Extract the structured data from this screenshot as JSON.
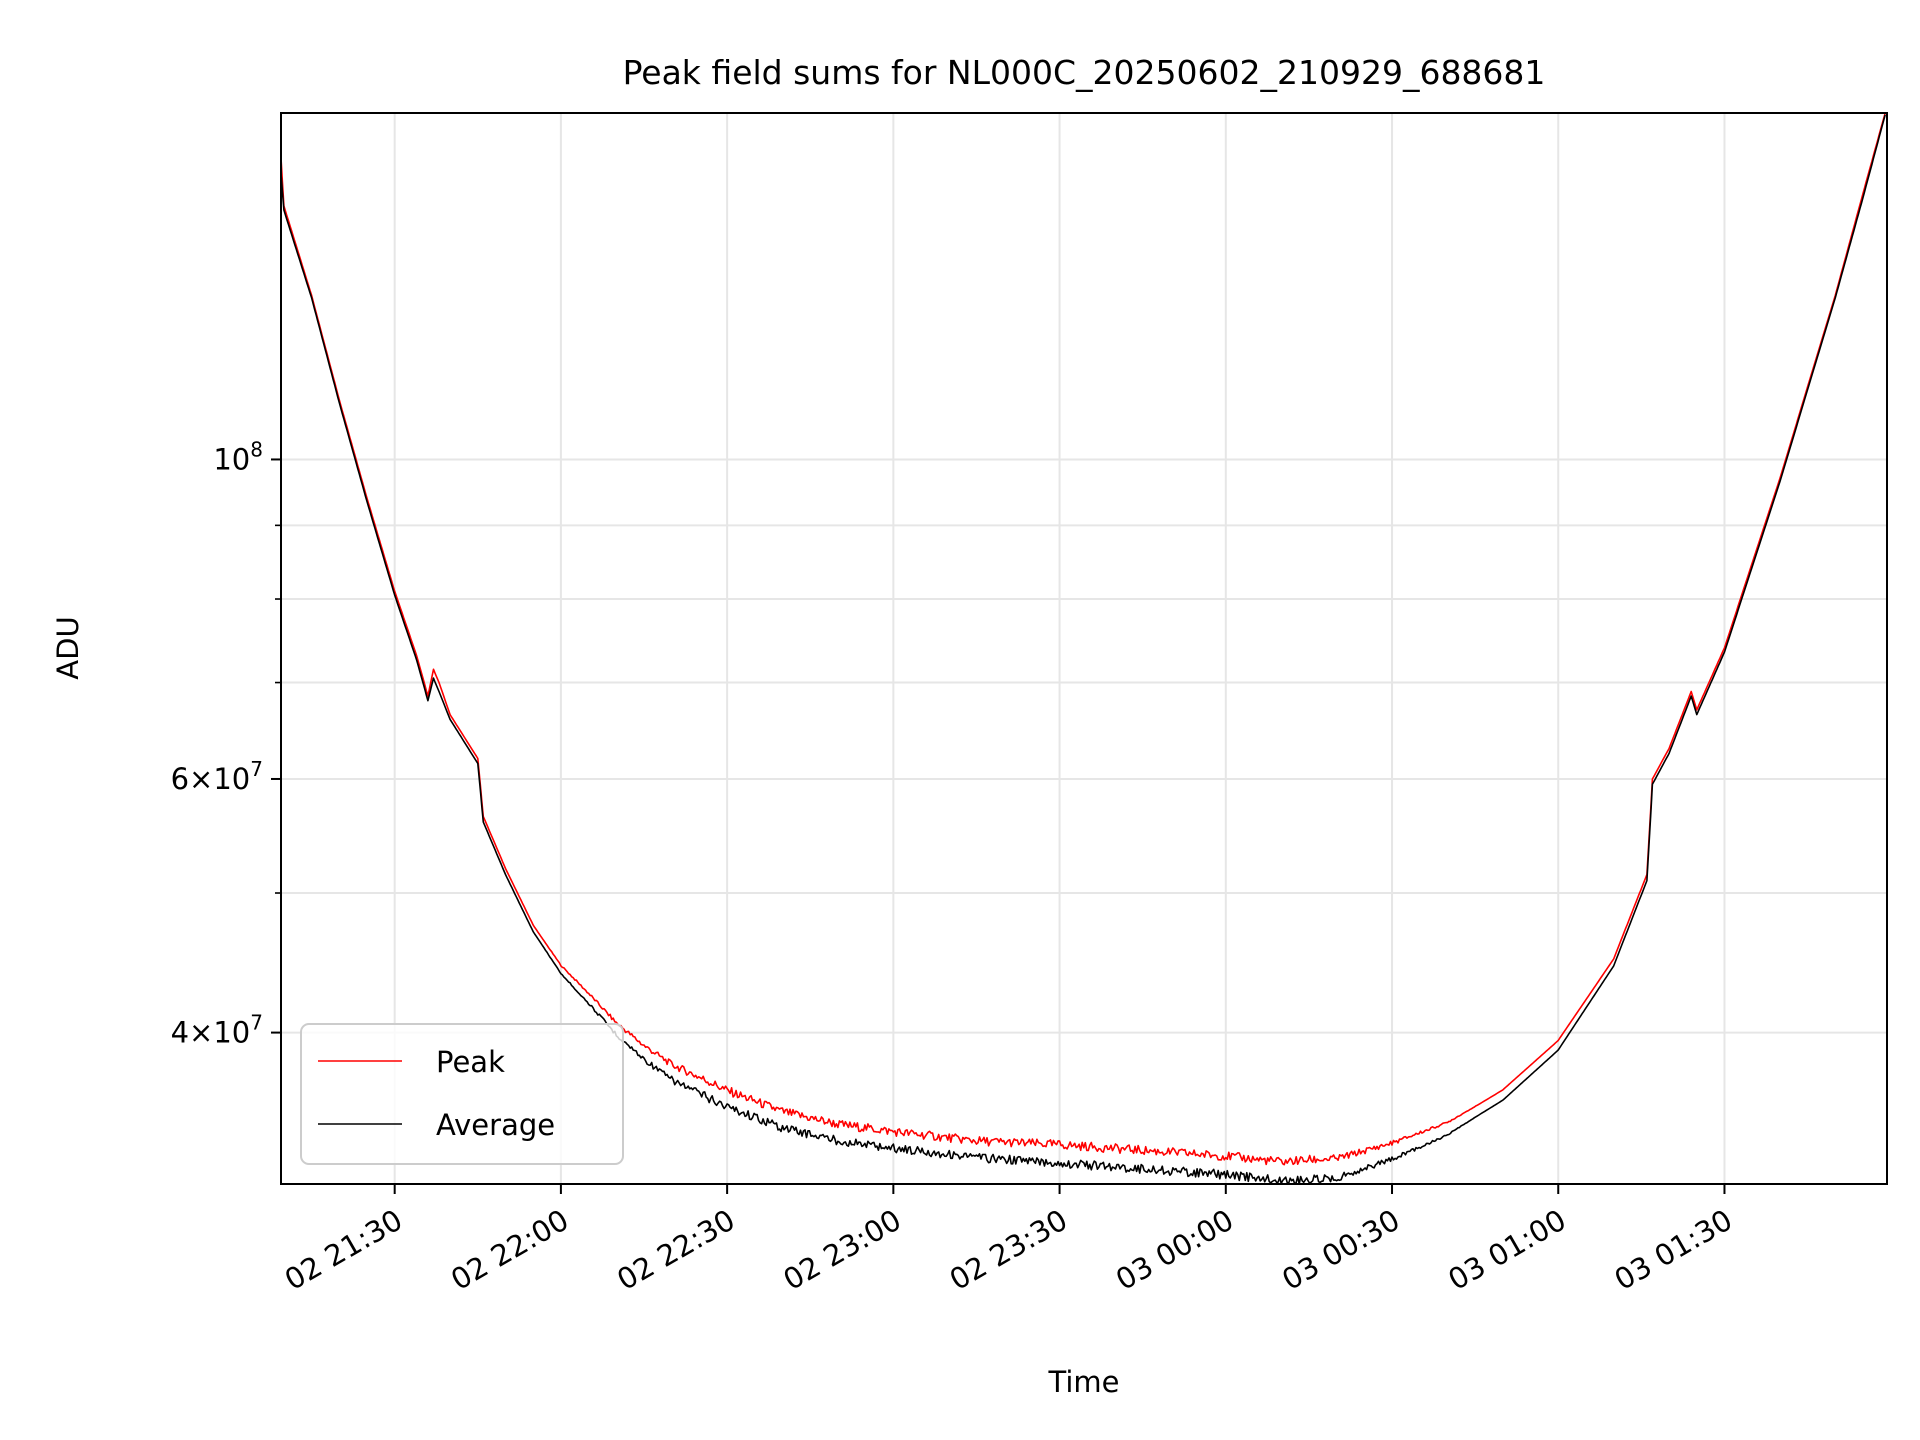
{
  "chart_data": {
    "type": "line",
    "title": "Peak field sums for NL000C_20250602_210929_688681",
    "xlabel": "Time",
    "ylabel": "ADU",
    "y_scale": "log",
    "ylim": [
      31400000,
      174000000
    ],
    "xlim": [
      "2025-06-02 21:09:29",
      "2025-06-03 01:59:20"
    ],
    "grid": true,
    "legend_position": "lower left",
    "x_ticks": [
      {
        "t": "2025-06-02 21:30",
        "label": "02 21:30"
      },
      {
        "t": "2025-06-02 22:00",
        "label": "02 22:00"
      },
      {
        "t": "2025-06-02 22:30",
        "label": "02 22:30"
      },
      {
        "t": "2025-06-02 23:00",
        "label": "02 23:00"
      },
      {
        "t": "2025-06-02 23:30",
        "label": "02 23:30"
      },
      {
        "t": "2025-06-03 00:00",
        "label": "03 00:00"
      },
      {
        "t": "2025-06-03 00:30",
        "label": "03 00:30"
      },
      {
        "t": "2025-06-03 01:00",
        "label": "03 01:00"
      },
      {
        "t": "2025-06-03 01:30",
        "label": "03 01:30"
      }
    ],
    "y_major_ticks": [
      {
        "value": 40000000,
        "mantissa": "4",
        "exp": "7"
      },
      {
        "value": 60000000,
        "mantissa": "6",
        "exp": "7"
      },
      {
        "value": 100000000,
        "mantissa": "",
        "exp": "8"
      }
    ],
    "y_minor_ticks": [
      50000000,
      70000000,
      80000000,
      90000000
    ],
    "series": [
      {
        "name": "Peak",
        "color": "#ff0000",
        "points": [
          [
            "2025-06-02 21:09:29",
            162000000
          ],
          [
            "2025-06-02 21:10",
            150000000
          ],
          [
            "2025-06-02 21:15",
            130000000
          ],
          [
            "2025-06-02 21:20",
            110000000
          ],
          [
            "2025-06-02 21:25",
            94000000
          ],
          [
            "2025-06-02 21:30",
            81000000
          ],
          [
            "2025-06-02 21:34",
            73000000
          ],
          [
            "2025-06-02 21:36",
            68500000
          ],
          [
            "2025-06-02 21:37",
            71500000
          ],
          [
            "2025-06-02 21:38",
            70000000
          ],
          [
            "2025-06-02 21:40",
            66500000
          ],
          [
            "2025-06-02 21:45",
            62000000
          ],
          [
            "2025-06-02 21:46",
            56500000
          ],
          [
            "2025-06-02 21:50",
            52000000
          ],
          [
            "2025-06-02 21:55",
            47500000
          ],
          [
            "2025-06-02 22:00",
            44500000
          ],
          [
            "2025-06-02 22:05",
            42500000
          ],
          [
            "2025-06-02 22:10",
            40500000
          ],
          [
            "2025-06-02 22:15",
            39000000
          ],
          [
            "2025-06-02 22:20",
            37800000
          ],
          [
            "2025-06-02 22:30",
            36200000
          ],
          [
            "2025-06-02 22:40",
            35000000
          ],
          [
            "2025-06-02 22:50",
            34300000
          ],
          [
            "2025-06-02 23:00",
            33900000
          ],
          [
            "2025-06-02 23:15",
            33400000
          ],
          [
            "2025-06-02 23:30",
            33200000
          ],
          [
            "2025-06-02 23:45",
            32900000
          ],
          [
            "2025-06-03 00:00",
            32600000
          ],
          [
            "2025-06-03 00:10",
            32300000
          ],
          [
            "2025-06-03 00:20",
            32500000
          ],
          [
            "2025-06-03 00:30",
            33400000
          ],
          [
            "2025-06-03 00:40",
            34600000
          ],
          [
            "2025-06-03 00:50",
            36500000
          ],
          [
            "2025-06-03 01:00",
            39500000
          ],
          [
            "2025-06-03 01:10",
            45000000
          ],
          [
            "2025-06-03 01:16",
            51500000
          ],
          [
            "2025-06-03 01:17",
            60000000
          ],
          [
            "2025-06-03 01:20",
            63000000
          ],
          [
            "2025-06-03 01:24",
            69000000
          ],
          [
            "2025-06-03 01:25",
            67000000
          ],
          [
            "2025-06-03 01:30",
            74000000
          ],
          [
            "2025-06-03 01:40",
            97000000
          ],
          [
            "2025-06-03 01:50",
            130000000
          ],
          [
            "2025-06-03 01:55",
            153000000
          ],
          [
            "2025-06-03 01:59",
            174000000
          ]
        ]
      },
      {
        "name": "Average",
        "color": "#000000",
        "points": [
          [
            "2025-06-02 21:09:29",
            158000000
          ],
          [
            "2025-06-02 21:10",
            149000000
          ],
          [
            "2025-06-02 21:15",
            129500000
          ],
          [
            "2025-06-02 21:20",
            109500000
          ],
          [
            "2025-06-02 21:25",
            93500000
          ],
          [
            "2025-06-02 21:30",
            80500000
          ],
          [
            "2025-06-02 21:34",
            72500000
          ],
          [
            "2025-06-02 21:36",
            68000000
          ],
          [
            "2025-06-02 21:37",
            70500000
          ],
          [
            "2025-06-02 21:38",
            69000000
          ],
          [
            "2025-06-02 21:40",
            66000000
          ],
          [
            "2025-06-02 21:45",
            61500000
          ],
          [
            "2025-06-02 21:46",
            56000000
          ],
          [
            "2025-06-02 21:50",
            51500000
          ],
          [
            "2025-06-02 21:55",
            47000000
          ],
          [
            "2025-06-02 22:00",
            44000000
          ],
          [
            "2025-06-02 22:05",
            42000000
          ],
          [
            "2025-06-02 22:10",
            40000000
          ],
          [
            "2025-06-02 22:15",
            38500000
          ],
          [
            "2025-06-02 22:20",
            37300000
          ],
          [
            "2025-06-02 22:30",
            35800000
          ],
          [
            "2025-06-02 22:40",
            34600000
          ],
          [
            "2025-06-02 22:50",
            33900000
          ],
          [
            "2025-06-02 23:00",
            33500000
          ],
          [
            "2025-06-02 23:15",
            33000000
          ],
          [
            "2025-06-02 23:30",
            32700000
          ],
          [
            "2025-06-02 23:45",
            32400000
          ],
          [
            "2025-06-03 00:00",
            32100000
          ],
          [
            "2025-06-03 00:10",
            31800000
          ],
          [
            "2025-06-03 00:20",
            31900000
          ],
          [
            "2025-06-03 00:30",
            32800000
          ],
          [
            "2025-06-03 00:40",
            34000000
          ],
          [
            "2025-06-03 00:50",
            35900000
          ],
          [
            "2025-06-03 01:00",
            38900000
          ],
          [
            "2025-06-03 01:10",
            44500000
          ],
          [
            "2025-06-03 01:16",
            51000000
          ],
          [
            "2025-06-03 01:17",
            59500000
          ],
          [
            "2025-06-03 01:20",
            62500000
          ],
          [
            "2025-06-03 01:24",
            68500000
          ],
          [
            "2025-06-03 01:25",
            66500000
          ],
          [
            "2025-06-03 01:30",
            73500000
          ],
          [
            "2025-06-03 01:40",
            96500000
          ],
          [
            "2025-06-03 01:50",
            129500000
          ],
          [
            "2025-06-03 01:55",
            152000000
          ],
          [
            "2025-06-03 01:59",
            173500000
          ]
        ]
      }
    ]
  }
}
